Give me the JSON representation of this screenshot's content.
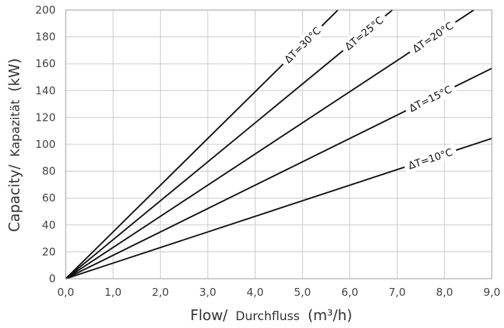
{
  "chart_data": {
    "type": "line",
    "xlabel_main": "Flow/",
    "xlabel_sub": "Durchfluss",
    "xlabel_unit": "(m³/h)",
    "ylabel_main": "Capacity/",
    "ylabel_sub": "Kapazität",
    "ylabel_unit": "(kW)",
    "xlim": [
      0,
      9
    ],
    "ylim": [
      0,
      200
    ],
    "x_ticks": [
      "0,0",
      "1,0",
      "2,0",
      "3,0",
      "4,0",
      "5,0",
      "6,0",
      "7,0",
      "8,0",
      "9,0"
    ],
    "y_ticks": [
      "0",
      "20",
      "40",
      "60",
      "80",
      "100",
      "120",
      "140",
      "160",
      "180",
      "200"
    ],
    "grid": true,
    "series": [
      {
        "name": "ΔT=30°C",
        "slope": 34.8,
        "x": [
          0,
          5.75
        ],
        "y": [
          0,
          200
        ],
        "label_x": 5.0
      },
      {
        "name": "ΔT=25°C",
        "slope": 29.0,
        "x": [
          0,
          6.9
        ],
        "y": [
          0,
          200
        ],
        "label_x": 6.3
      },
      {
        "name": "ΔT=20°C",
        "slope": 23.2,
        "x": [
          0,
          8.62
        ],
        "y": [
          0,
          200
        ],
        "label_x": 7.75
      },
      {
        "name": "ΔT=15°C",
        "slope": 17.4,
        "x": [
          0,
          9.0
        ],
        "y": [
          0,
          156.6
        ],
        "label_x": 7.7
      },
      {
        "name": "ΔT=10°C",
        "slope": 11.6,
        "x": [
          0,
          9.0
        ],
        "y": [
          0,
          104.4
        ],
        "label_x": 7.7
      }
    ]
  }
}
